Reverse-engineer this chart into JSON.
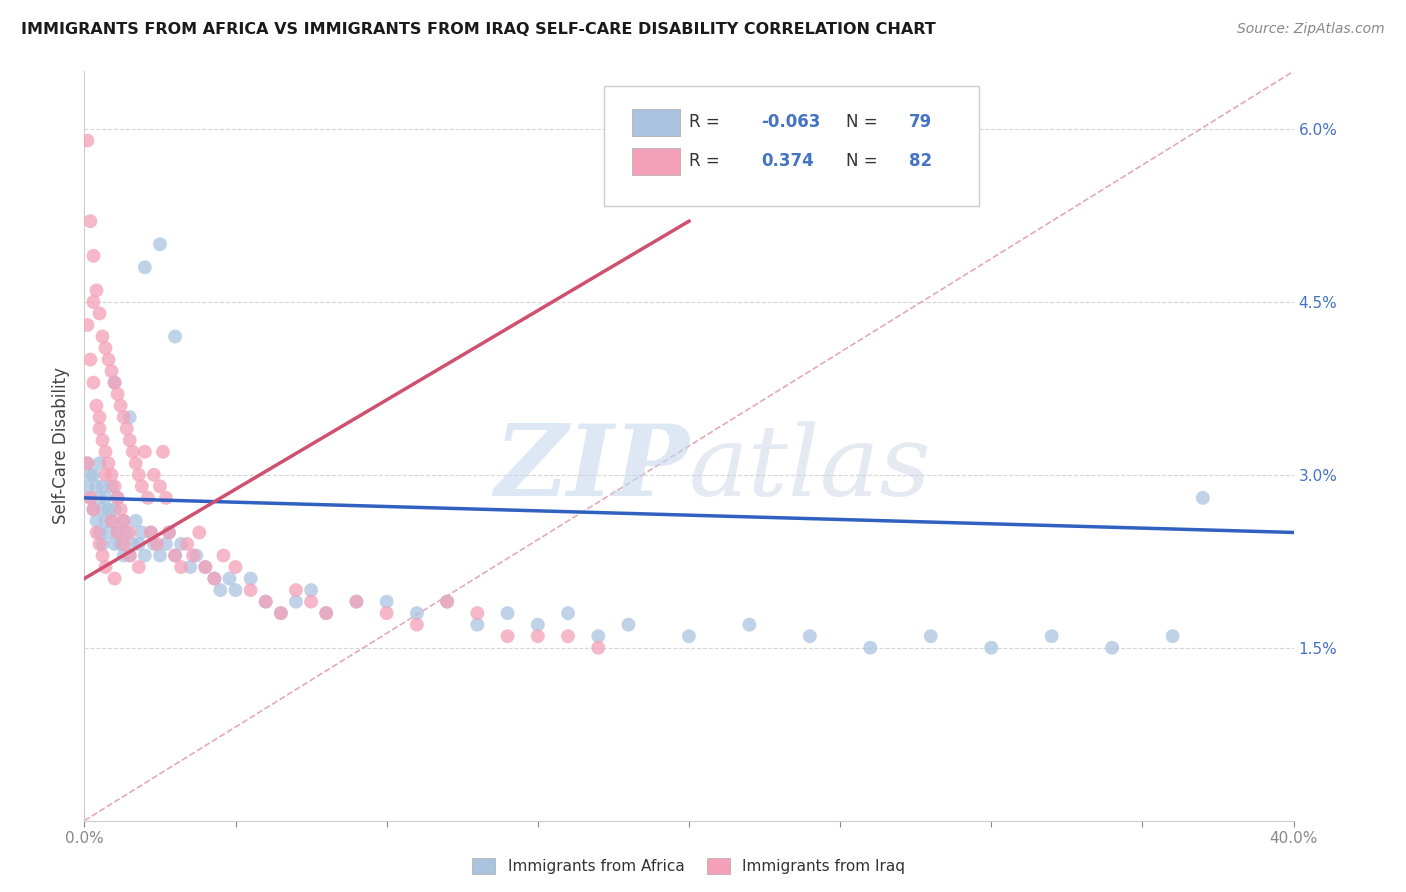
{
  "title": "IMMIGRANTS FROM AFRICA VS IMMIGRANTS FROM IRAQ SELF-CARE DISABILITY CORRELATION CHART",
  "source": "Source: ZipAtlas.com",
  "ylabel": "Self-Care Disability",
  "africa_color": "#aac4e0",
  "iraq_color": "#f4a0b8",
  "africa_line_color": "#3060c0",
  "iraq_line_color": "#d05070",
  "diagonal_color": "#e0a0b0",
  "watermark_zip_color": "#c8d8ee",
  "watermark_atlas_color": "#c0cce0",
  "legend_text_color": "#4472c4",
  "x_lim": [
    0.0,
    0.4
  ],
  "y_lim": [
    0.0,
    0.065
  ],
  "x_ticks": [
    0.0,
    0.05,
    0.1,
    0.15,
    0.2,
    0.25,
    0.3,
    0.35,
    0.4
  ],
  "y_ticks": [
    0.015,
    0.03,
    0.045,
    0.06
  ],
  "y_tick_labels": [
    "1.5%",
    "3.0%",
    "4.5%",
    "6.0%"
  ],
  "legend_africa_label": "Immigrants from Africa",
  "legend_iraq_label": "Immigrants from Iraq",
  "africa_R": -0.063,
  "africa_N": 79,
  "iraq_R": 0.374,
  "iraq_N": 82,
  "africa_line_x0": 0.0,
  "africa_line_y0": 0.028,
  "africa_line_x1": 0.4,
  "africa_line_y1": 0.025,
  "iraq_line_x0": 0.0,
  "iraq_line_y0": 0.021,
  "iraq_line_x1": 0.2,
  "iraq_line_y1": 0.052,
  "africa_scatter_x": [
    0.001,
    0.001,
    0.002,
    0.002,
    0.003,
    0.003,
    0.004,
    0.004,
    0.005,
    0.005,
    0.005,
    0.006,
    0.006,
    0.006,
    0.007,
    0.007,
    0.008,
    0.008,
    0.009,
    0.009,
    0.01,
    0.01,
    0.011,
    0.011,
    0.012,
    0.013,
    0.013,
    0.014,
    0.015,
    0.016,
    0.017,
    0.018,
    0.019,
    0.02,
    0.022,
    0.023,
    0.025,
    0.027,
    0.028,
    0.03,
    0.032,
    0.035,
    0.037,
    0.04,
    0.043,
    0.045,
    0.048,
    0.05,
    0.055,
    0.06,
    0.065,
    0.07,
    0.075,
    0.08,
    0.09,
    0.1,
    0.11,
    0.12,
    0.13,
    0.14,
    0.15,
    0.16,
    0.17,
    0.18,
    0.2,
    0.22,
    0.24,
    0.26,
    0.28,
    0.3,
    0.32,
    0.34,
    0.36,
    0.01,
    0.015,
    0.02,
    0.025,
    0.03,
    0.37
  ],
  "africa_scatter_y": [
    0.029,
    0.031,
    0.028,
    0.03,
    0.027,
    0.03,
    0.026,
    0.029,
    0.025,
    0.028,
    0.031,
    0.024,
    0.027,
    0.029,
    0.026,
    0.028,
    0.025,
    0.027,
    0.026,
    0.029,
    0.024,
    0.027,
    0.025,
    0.028,
    0.024,
    0.023,
    0.026,
    0.025,
    0.023,
    0.024,
    0.026,
    0.024,
    0.025,
    0.023,
    0.025,
    0.024,
    0.023,
    0.024,
    0.025,
    0.023,
    0.024,
    0.022,
    0.023,
    0.022,
    0.021,
    0.02,
    0.021,
    0.02,
    0.021,
    0.019,
    0.018,
    0.019,
    0.02,
    0.018,
    0.019,
    0.019,
    0.018,
    0.019,
    0.017,
    0.018,
    0.017,
    0.018,
    0.016,
    0.017,
    0.016,
    0.017,
    0.016,
    0.015,
    0.016,
    0.015,
    0.016,
    0.015,
    0.016,
    0.038,
    0.035,
    0.048,
    0.05,
    0.042,
    0.028
  ],
  "iraq_scatter_x": [
    0.001,
    0.001,
    0.001,
    0.002,
    0.002,
    0.002,
    0.003,
    0.003,
    0.003,
    0.004,
    0.004,
    0.004,
    0.005,
    0.005,
    0.005,
    0.006,
    0.006,
    0.006,
    0.007,
    0.007,
    0.007,
    0.008,
    0.008,
    0.009,
    0.009,
    0.01,
    0.01,
    0.01,
    0.011,
    0.011,
    0.012,
    0.012,
    0.013,
    0.013,
    0.014,
    0.015,
    0.015,
    0.016,
    0.017,
    0.018,
    0.019,
    0.02,
    0.021,
    0.022,
    0.023,
    0.024,
    0.025,
    0.026,
    0.027,
    0.028,
    0.03,
    0.032,
    0.034,
    0.036,
    0.038,
    0.04,
    0.043,
    0.046,
    0.05,
    0.055,
    0.06,
    0.065,
    0.07,
    0.075,
    0.08,
    0.09,
    0.1,
    0.11,
    0.12,
    0.13,
    0.14,
    0.15,
    0.16,
    0.17,
    0.003,
    0.005,
    0.007,
    0.009,
    0.011,
    0.013,
    0.015,
    0.018
  ],
  "iraq_scatter_y": [
    0.059,
    0.043,
    0.031,
    0.052,
    0.04,
    0.028,
    0.049,
    0.038,
    0.027,
    0.046,
    0.036,
    0.025,
    0.044,
    0.034,
    0.024,
    0.042,
    0.033,
    0.023,
    0.041,
    0.032,
    0.022,
    0.04,
    0.031,
    0.039,
    0.03,
    0.038,
    0.029,
    0.021,
    0.037,
    0.028,
    0.036,
    0.027,
    0.035,
    0.026,
    0.034,
    0.033,
    0.025,
    0.032,
    0.031,
    0.03,
    0.029,
    0.032,
    0.028,
    0.025,
    0.03,
    0.024,
    0.029,
    0.032,
    0.028,
    0.025,
    0.023,
    0.022,
    0.024,
    0.023,
    0.025,
    0.022,
    0.021,
    0.023,
    0.022,
    0.02,
    0.019,
    0.018,
    0.02,
    0.019,
    0.018,
    0.019,
    0.018,
    0.017,
    0.019,
    0.018,
    0.016,
    0.016,
    0.016,
    0.015,
    0.045,
    0.035,
    0.03,
    0.026,
    0.025,
    0.024,
    0.023,
    0.022
  ]
}
